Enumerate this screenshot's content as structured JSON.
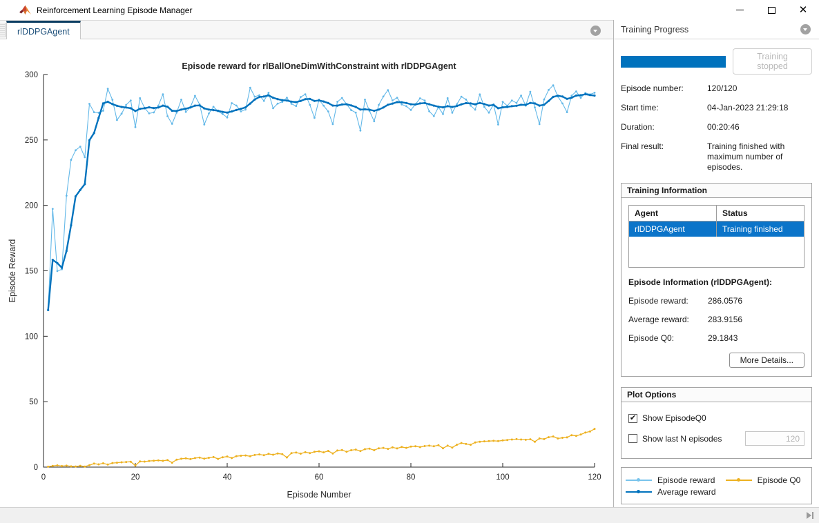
{
  "window": {
    "title": "Reinforcement Learning Episode Manager"
  },
  "icons": {
    "app": "matlab-logo",
    "tab_overflow": "chevron-down-circle",
    "panel_collapse": "chevron-down-circle",
    "status_right": "skip-to-end"
  },
  "tab": {
    "label": "rlDDPGAgent"
  },
  "training_progress": {
    "header": "Training Progress",
    "progress_percent": 100,
    "progress_color": "#0072bd",
    "stop_button_label": "Training stopped",
    "fields": [
      {
        "label": "Episode number:",
        "value": "120/120"
      },
      {
        "label": "Start time:",
        "value": "04-Jan-2023 21:29:18"
      },
      {
        "label": "Duration:",
        "value": "00:20:46"
      },
      {
        "label": "Final result:",
        "value": "Training finished with maximum number of episodes."
      }
    ]
  },
  "training_information": {
    "header": "Training Information",
    "table": {
      "columns": [
        "Agent",
        "Status"
      ],
      "rows": [
        [
          "rlDDPGAgent",
          "Training finished"
        ]
      ],
      "selected_row": 0,
      "selection_color": "#0b74c9"
    },
    "episode_info_title": "Episode Information (rlDDPGAgent):",
    "episode_fields": [
      {
        "label": "Episode reward:",
        "value": "286.0576"
      },
      {
        "label": "Average reward:",
        "value": "283.9156"
      },
      {
        "label": "Episode Q0:",
        "value": "29.1843"
      }
    ],
    "more_details_label": "More Details..."
  },
  "plot_options": {
    "header": "Plot Options",
    "show_q0": {
      "label": "Show EpisodeQ0",
      "checked": true
    },
    "show_last_n": {
      "label": "Show last N episodes",
      "checked": false,
      "value": "120"
    }
  },
  "legend": {
    "entries": [
      {
        "label": "Episode reward",
        "color": "#79c4ec"
      },
      {
        "label": "Episode Q0",
        "color": "#edb120"
      },
      {
        "label": "Average reward",
        "color": "#0072bd"
      }
    ]
  },
  "chart_data": {
    "type": "line",
    "title": "Episode reward for rlBallOneDimWithConstraint with rlDDPGAgent",
    "xlabel": "Episode Number",
    "ylabel": "Episode Reward",
    "xlim": [
      0,
      120
    ],
    "ylim": [
      0,
      300
    ],
    "xticks": [
      0,
      20,
      40,
      60,
      80,
      100,
      120
    ],
    "yticks": [
      0,
      50,
      100,
      150,
      200,
      250,
      300
    ],
    "grid": false,
    "legend_position": "outside-right-panel",
    "x_start": 1,
    "series": [
      {
        "name": "Episode reward",
        "color": "#63b8e8",
        "line_width": 1.1,
        "marker_size": 1.4,
        "values": [
          120.0,
          197.3,
          149.8,
          151.2,
          207.4,
          234.8,
          242.1,
          244.9,
          236.8,
          277.6,
          271.2,
          270.8,
          272.3,
          289.1,
          280.7,
          265.2,
          270.1,
          276.8,
          280.2,
          259.8,
          281.9,
          274.6,
          270.3,
          271.0,
          276.2,
          284.9,
          268.1,
          262.3,
          270.9,
          280.8,
          271.4,
          275.2,
          283.7,
          277.1,
          261.8,
          270.2,
          275.3,
          271.9,
          269.8,
          267.2,
          278.1,
          276.3,
          271.8,
          273.2,
          289.9,
          283.1,
          284.2,
          279.8,
          286.1,
          274.2,
          277.8,
          279.1,
          282.3,
          277.6,
          275.9,
          282.8,
          284.9,
          276.8,
          266.9,
          280.8,
          276.2,
          271.8,
          262.1,
          279.2,
          282.1,
          277.3,
          272.8,
          270.9,
          257.2,
          280.8,
          272.1,
          264.3,
          276.8,
          283.2,
          288.1,
          280.2,
          282.3,
          277.1,
          275.8,
          272.9,
          277.2,
          281.8,
          280.1,
          271.9,
          268.2,
          275.1,
          269.8,
          281.9,
          270.8,
          277.2,
          283.1,
          280.9,
          276.2,
          273.1,
          284.8,
          275.2,
          270.9,
          277.1,
          261.8,
          279.2,
          276.1,
          280.2,
          278.3,
          283.9,
          276.2,
          286.8,
          274.9,
          262.1,
          280.9,
          288.2,
          291.8,
          283.2,
          277.9,
          271.2,
          283.8,
          287.1,
          282.2,
          285.9,
          284.8,
          286.1
        ]
      },
      {
        "name": "Average reward",
        "color": "#0072bd",
        "line_width": 2.4,
        "marker_size": 1.6,
        "values": [
          120.0,
          158.4,
          155.9,
          152.3,
          165.2,
          184.8,
          206.9,
          211.8,
          216.2,
          249.8,
          255.3,
          266.8,
          277.9,
          279.2,
          277.4,
          276.1,
          275.2,
          274.8,
          274.2,
          272.1,
          273.8,
          274.2,
          274.9,
          274.3,
          274.8,
          276.2,
          275.4,
          272.3,
          272.1,
          273.2,
          273.9,
          274.8,
          276.2,
          276.4,
          274.1,
          273.2,
          272.8,
          272.3,
          271.4,
          270.9,
          271.8,
          272.9,
          273.8,
          274.9,
          277.8,
          280.9,
          282.8,
          283.2,
          284.1,
          282.3,
          281.2,
          280.4,
          280.1,
          279.3,
          278.9,
          279.8,
          281.2,
          281.4,
          279.8,
          280.2,
          279.4,
          278.2,
          276.3,
          276.2,
          277.1,
          277.3,
          276.4,
          275.2,
          273.2,
          273.4,
          273.1,
          272.3,
          273.2,
          274.8,
          276.9,
          277.8,
          278.9,
          278.8,
          278.2,
          277.3,
          277.1,
          277.9,
          278.2,
          277.3,
          276.2,
          275.4,
          274.9,
          275.8,
          275.2,
          275.9,
          277.2,
          278.1,
          277.9,
          277.2,
          278.3,
          277.4,
          276.3,
          276.8,
          274.2,
          274.9,
          275.2,
          275.8,
          276.1,
          276.9,
          276.8,
          278.3,
          277.9,
          276.2,
          276.9,
          279.8,
          282.9,
          283.8,
          283.2,
          281.4,
          282.3,
          283.9,
          284.2,
          284.9,
          284.3,
          283.9
        ]
      },
      {
        "name": "Episode Q0",
        "color": "#edb120",
        "line_width": 1.3,
        "marker_size": 1.5,
        "values": [
          0.3,
          0.9,
          1.3,
          0.8,
          1.1,
          0.6,
          0.5,
          1.0,
          0.4,
          1.4,
          2.7,
          2.1,
          2.9,
          2.0,
          3.1,
          3.4,
          3.7,
          3.9,
          4.1,
          1.2,
          4.4,
          4.2,
          4.7,
          4.9,
          5.1,
          4.8,
          5.4,
          3.4,
          5.7,
          6.4,
          6.7,
          6.1,
          6.9,
          7.3,
          6.5,
          7.1,
          7.7,
          6.3,
          7.5,
          8.1,
          6.9,
          8.4,
          8.7,
          8.9,
          8.3,
          9.3,
          9.7,
          9.1,
          10.1,
          9.5,
          10.4,
          9.9,
          7.4,
          10.7,
          11.1,
          10.3,
          11.4,
          10.7,
          11.7,
          12.1,
          11.3,
          12.4,
          10.4,
          12.7,
          13.1,
          11.7,
          12.9,
          13.4,
          12.3,
          13.7,
          14.1,
          12.9,
          14.4,
          14.7,
          13.9,
          15.1,
          14.3,
          15.4,
          14.7,
          15.7,
          15.9,
          15.3,
          16.1,
          16.4,
          15.9,
          16.7,
          14.4,
          16.4,
          14.9,
          17.1,
          18.4,
          17.7,
          17.1,
          18.9,
          19.4,
          19.7,
          19.9,
          20.1,
          19.9,
          20.4,
          20.7,
          21.1,
          21.4,
          21.1,
          20.9,
          21.3,
          19.4,
          21.9,
          21.4,
          22.9,
          23.4,
          21.9,
          22.4,
          22.7,
          24.4,
          23.9,
          24.9,
          26.4,
          27.2,
          29.2
        ]
      }
    ]
  }
}
